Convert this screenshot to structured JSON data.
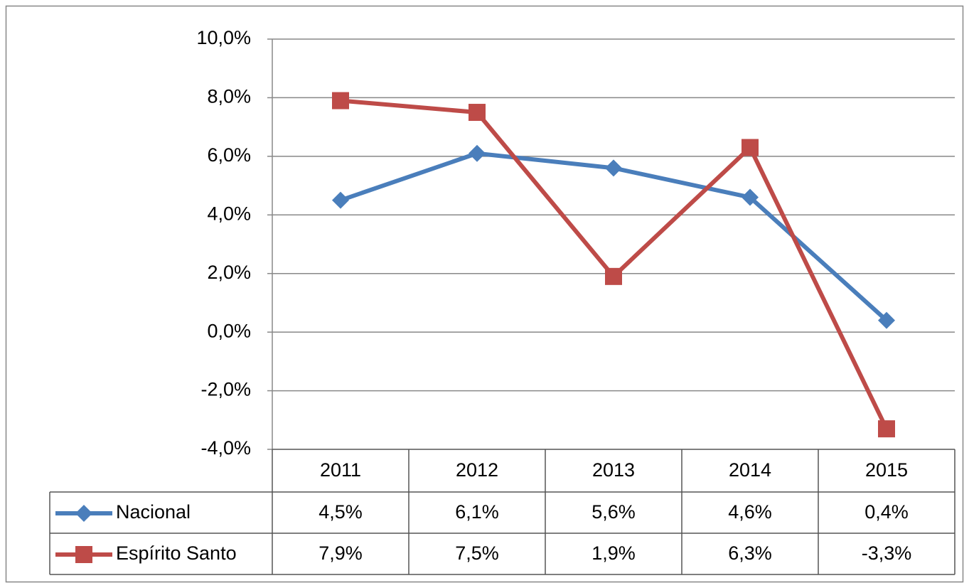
{
  "chart_data": {
    "type": "line",
    "categories": [
      "2011",
      "2012",
      "2013",
      "2014",
      "2015"
    ],
    "series": [
      {
        "name": "Nacional",
        "color": "#4a7ebb",
        "marker": "diamond",
        "values": [
          4.5,
          6.1,
          5.6,
          4.6,
          0.4
        ],
        "value_labels": [
          "4,5%",
          "6,1%",
          "5,6%",
          "4,6%",
          "0,4%"
        ]
      },
      {
        "name": "Espírito Santo",
        "color": "#be4b48",
        "marker": "square",
        "values": [
          7.9,
          7.5,
          1.9,
          6.3,
          -3.3
        ],
        "value_labels": [
          "7,9%",
          "7,5%",
          "1,9%",
          "6,3%",
          "-3,3%"
        ]
      }
    ],
    "ylim": [
      -4,
      10
    ],
    "yticks": [
      {
        "value": -4,
        "label": "-4,0%"
      },
      {
        "value": -2,
        "label": "-2,0%"
      },
      {
        "value": 0,
        "label": "0,0%"
      },
      {
        "value": 2,
        "label": "2,0%"
      },
      {
        "value": 4,
        "label": "4,0%"
      },
      {
        "value": 6,
        "label": "6,0%"
      },
      {
        "value": 8,
        "label": "8,0%"
      },
      {
        "value": 10,
        "label": "10,0%"
      }
    ],
    "grid": true,
    "data_table": true
  }
}
